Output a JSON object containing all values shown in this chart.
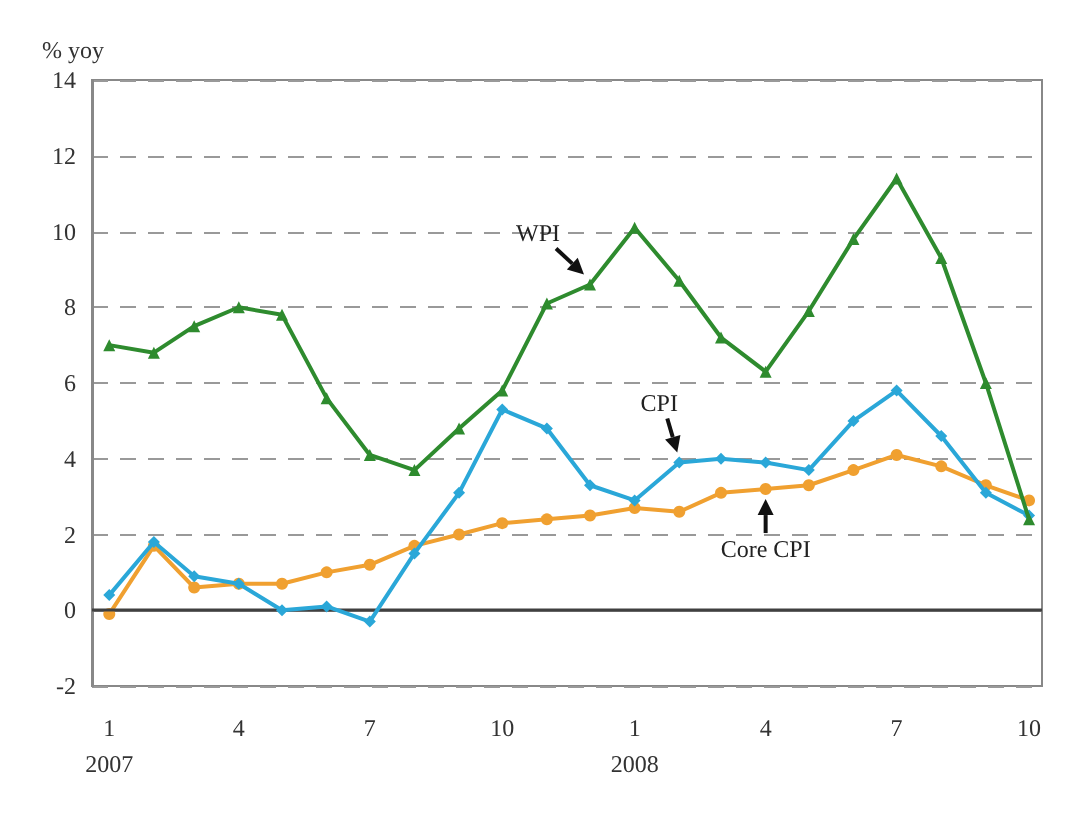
{
  "chart_data": {
    "type": "line",
    "ylabel": "% yoy",
    "x": [
      "2007-01",
      "2007-02",
      "2007-03",
      "2007-04",
      "2007-05",
      "2007-06",
      "2007-07",
      "2007-08",
      "2007-09",
      "2007-10",
      "2007-11",
      "2007-12",
      "2008-01",
      "2008-02",
      "2008-03",
      "2008-04",
      "2008-05",
      "2008-06",
      "2008-07",
      "2008-08",
      "2008-09",
      "2008-10"
    ],
    "series": [
      {
        "color": "#2e8b2e",
        "marker": "triangle",
        "values": [
          7.0,
          6.8,
          7.5,
          8.0,
          7.8,
          5.6,
          4.1,
          3.7,
          4.8,
          5.8,
          8.1,
          8.6,
          10.1,
          8.7,
          7.2,
          6.3,
          7.9,
          9.8,
          11.4,
          9.3,
          6.0,
          2.4
        ]
      },
      {
        "color": "#2aa7d8",
        "marker": "diamond",
        "values": [
          0.4,
          1.8,
          0.9,
          0.7,
          0.0,
          0.1,
          -0.3,
          1.5,
          3.1,
          5.3,
          4.8,
          3.3,
          2.9,
          3.9,
          4.0,
          3.9,
          3.7,
          5.0,
          5.8,
          4.6,
          3.1,
          2.5
        ]
      },
      {
        "color": "#f0a030",
        "marker": "circle",
        "values": [
          -0.1,
          1.7,
          0.6,
          0.7,
          0.7,
          1.0,
          1.2,
          1.7,
          2.0,
          2.3,
          2.4,
          2.5,
          2.7,
          2.6,
          3.1,
          3.2,
          3.3,
          3.7,
          4.1,
          3.8,
          3.3,
          2.9
        ]
      }
    ],
    "xlim": [
      "2006-12-20",
      "2008-10-10"
    ],
    "xticks": [
      {
        "value": "2007-01",
        "label": "1\n2007"
      },
      {
        "value": "2007-04",
        "label": "4"
      },
      {
        "value": "2007-07",
        "label": "7"
      },
      {
        "value": "2007-10",
        "label": "10"
      },
      {
        "value": "2008-01",
        "label": "1\n2008"
      },
      {
        "value": "2008-04",
        "label": "4"
      },
      {
        "value": "2008-07",
        "label": "7"
      },
      {
        "value": "2008-10",
        "label": "10"
      }
    ],
    "ylim": [
      -2,
      14
    ],
    "yticks": [
      -2,
      0,
      2,
      4,
      6,
      8,
      10,
      12,
      14
    ],
    "grid": "y",
    "legend": false,
    "line_style": "solid",
    "ref_lines": [
      {
        "axis": "y",
        "value": 0,
        "color": "#404040",
        "line_style": "solid"
      }
    ],
    "annotations": [
      {
        "text": "WPI",
        "x": "2007-12",
        "y": 8.6
      },
      {
        "text": "CPI",
        "x": "2008-02",
        "y": 3.9
      },
      {
        "text": "Core CPI",
        "x": "2008-04",
        "y": 3.2
      }
    ]
  }
}
